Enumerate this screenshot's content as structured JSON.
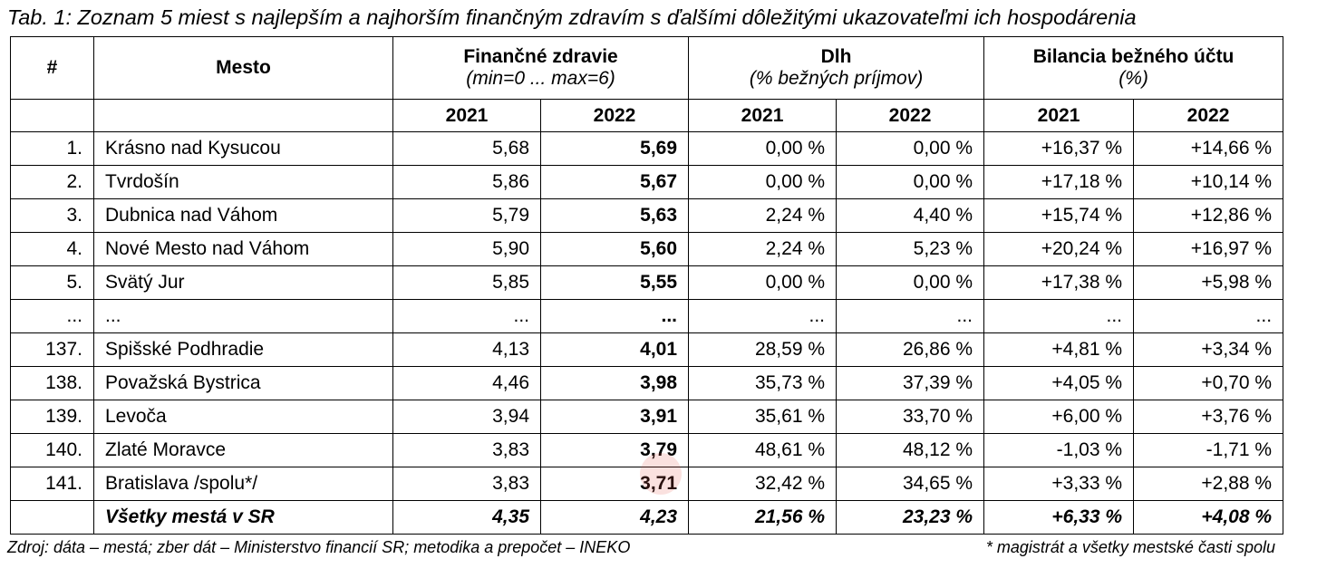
{
  "caption": "Tab. 1: Zoznam 5 miest s najlepším a najhorším finančným zdravím s ďalšími dôležitými ukazovateľmi ich hospodárenia",
  "header": {
    "rank": "#",
    "city": "Mesto",
    "health": {
      "title": "Finančné zdravie",
      "sub": "(min=0 ... max=6)"
    },
    "debt": {
      "title": "Dlh",
      "sub": "(% bežných príjmov)"
    },
    "balance": {
      "title": "Bilancia bežného účtu",
      "sub": "(%)"
    },
    "years": [
      "2021",
      "2022",
      "2021",
      "2022",
      "2021",
      "2022"
    ]
  },
  "rows": [
    [
      "1.",
      "Krásno nad Kysucou",
      "5,68",
      "5,69",
      "0,00 %",
      "0,00 %",
      "+16,37 %",
      "+14,66 %"
    ],
    [
      "2.",
      "Tvrdošín",
      "5,86",
      "5,67",
      "0,00 %",
      "0,00 %",
      "+17,18 %",
      "+10,14 %"
    ],
    [
      "3.",
      "Dubnica nad Váhom",
      "5,79",
      "5,63",
      "2,24 %",
      "4,40 %",
      "+15,74 %",
      "+12,86 %"
    ],
    [
      "4.",
      "Nové Mesto nad Váhom",
      "5,90",
      "5,60",
      "2,24 %",
      "5,23 %",
      "+20,24 %",
      "+16,97 %"
    ],
    [
      "5.",
      "Svätý Jur",
      "5,85",
      "5,55",
      "0,00 %",
      "0,00 %",
      "+17,38 %",
      "+5,98 %"
    ],
    [
      "...",
      "...",
      "...",
      "...",
      "...",
      "...",
      "...",
      "..."
    ],
    [
      "137.",
      "Spišské Podhradie",
      "4,13",
      "4,01",
      "28,59 %",
      "26,86 %",
      "+4,81 %",
      "+3,34 %"
    ],
    [
      "138.",
      "Považská Bystrica",
      "4,46",
      "3,98",
      "35,73 %",
      "37,39 %",
      "+4,05 %",
      "+0,70 %"
    ],
    [
      "139.",
      "Levoča",
      "3,94",
      "3,91",
      "35,61 %",
      "33,70 %",
      "+6,00 %",
      "+3,76 %"
    ],
    [
      "140.",
      "Zlaté Moravce",
      "3,83",
      "3,79",
      "48,61 %",
      "48,12 %",
      "-1,03 %",
      "-1,71 %"
    ],
    [
      "141.",
      "Bratislava /spolu*/",
      "3,83",
      "3,71",
      "32,42 %",
      "34,65 %",
      "+3,33 %",
      "+2,88 %"
    ]
  ],
  "total": [
    "",
    "Všetky mestá v SR",
    "4,35",
    "4,23",
    "21,56 %",
    "23,23 %",
    "+6,33 %",
    "+4,08 %"
  ],
  "footer": {
    "source": "Zdroj: dáta – mestá; zber dát – Ministerstvo financií SR; metodika a prepočet – INEKO",
    "note": "* magistrát a všetky mestské časti spolu"
  }
}
